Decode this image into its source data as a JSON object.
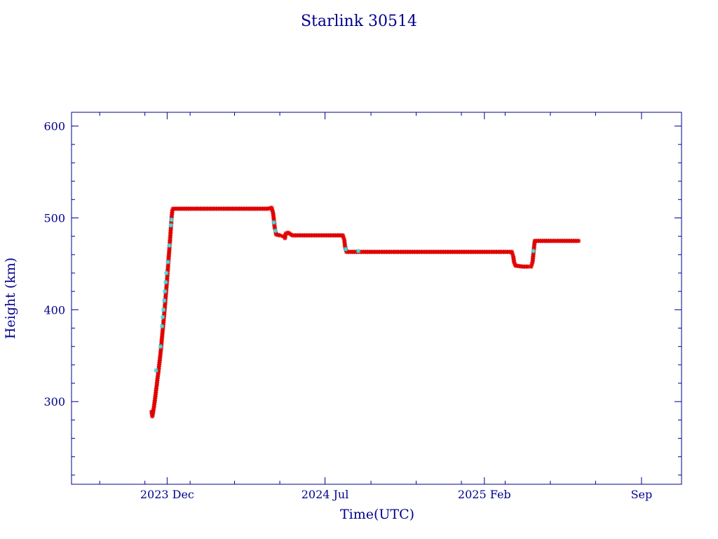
{
  "chart_data": {
    "type": "scatter",
    "title": "Starlink 30514",
    "xlabel": "Time(UTC)",
    "ylabel": "Height (km)",
    "ylim": [
      210,
      615
    ],
    "xlim": [
      "2023-07-25",
      "2025-10-25"
    ],
    "y_ticks": [
      300,
      400,
      500,
      600
    ],
    "x_ticks": [
      {
        "date": "2023-12-01",
        "label": "2023 Dec"
      },
      {
        "date": "2024-07-01",
        "label": "2024 Jul"
      },
      {
        "date": "2025-02-01",
        "label": "2025 Feb"
      },
      {
        "date": "2025-09-01",
        "label": "Sep"
      }
    ],
    "grid": false,
    "colors": {
      "axis": "#00008b",
      "primary": "#e00000",
      "secondary": "#40e0e0"
    },
    "series": [
      {
        "color": "#e00000",
        "marker": "asterisk",
        "points": [
          [
            "2023-11-10",
            289
          ],
          [
            "2023-11-11",
            284
          ],
          [
            "2023-11-12",
            288
          ],
          [
            "2023-11-13",
            293
          ],
          [
            "2023-11-14",
            299
          ],
          [
            "2023-11-15",
            305
          ],
          [
            "2023-11-16",
            312
          ],
          [
            "2023-11-17",
            318
          ],
          [
            "2023-11-18",
            325
          ],
          [
            "2023-11-19",
            331
          ],
          [
            "2023-11-20",
            338
          ],
          [
            "2023-11-21",
            345
          ],
          [
            "2023-11-22",
            352
          ],
          [
            "2023-11-23",
            360
          ],
          [
            "2023-11-24",
            369
          ],
          [
            "2023-11-25",
            378
          ],
          [
            "2023-11-26",
            386
          ],
          [
            "2023-11-27",
            395
          ],
          [
            "2023-11-28",
            404
          ],
          [
            "2023-11-29",
            414
          ],
          [
            "2023-11-30",
            424
          ],
          [
            "2023-12-01",
            434
          ],
          [
            "2023-12-02",
            445
          ],
          [
            "2023-12-03",
            456
          ],
          [
            "2023-12-04",
            466
          ],
          [
            "2023-12-05",
            477
          ],
          [
            "2023-12-06",
            488
          ],
          [
            "2023-12-07",
            500
          ],
          [
            "2023-12-08",
            508
          ],
          [
            "2023-12-09",
            510
          ],
          [
            "2023-12-15",
            510
          ],
          [
            "2024-01-01",
            510
          ],
          [
            "2024-01-15",
            510
          ],
          [
            "2024-02-01",
            510
          ],
          [
            "2024-02-15",
            510
          ],
          [
            "2024-03-01",
            510
          ],
          [
            "2024-03-15",
            510
          ],
          [
            "2024-04-01",
            510
          ],
          [
            "2024-04-15",
            510
          ],
          [
            "2024-04-20",
            511
          ],
          [
            "2024-04-22",
            505
          ],
          [
            "2024-04-23",
            498
          ],
          [
            "2024-04-24",
            490
          ],
          [
            "2024-04-26",
            482
          ],
          [
            "2024-05-01",
            481
          ],
          [
            "2024-05-05",
            480
          ],
          [
            "2024-05-08",
            478
          ],
          [
            "2024-05-09",
            483
          ],
          [
            "2024-05-12",
            484
          ],
          [
            "2024-05-18",
            481
          ],
          [
            "2024-06-01",
            481
          ],
          [
            "2024-06-15",
            481
          ],
          [
            "2024-07-01",
            481
          ],
          [
            "2024-07-15",
            481
          ],
          [
            "2024-07-25",
            481
          ],
          [
            "2024-07-27",
            476
          ],
          [
            "2024-07-28",
            469
          ],
          [
            "2024-07-30",
            463
          ],
          [
            "2024-08-05",
            463
          ],
          [
            "2024-08-15",
            463
          ],
          [
            "2024-09-01",
            463
          ],
          [
            "2024-10-01",
            463
          ],
          [
            "2024-11-01",
            463
          ],
          [
            "2024-12-01",
            463
          ],
          [
            "2025-01-01",
            463
          ],
          [
            "2025-02-01",
            463
          ],
          [
            "2025-03-01",
            463
          ],
          [
            "2025-03-10",
            463
          ],
          [
            "2025-03-12",
            458
          ],
          [
            "2025-03-13",
            452
          ],
          [
            "2025-03-15",
            448
          ],
          [
            "2025-03-25",
            447
          ],
          [
            "2025-04-01",
            447
          ],
          [
            "2025-04-05",
            447
          ],
          [
            "2025-04-07",
            452
          ],
          [
            "2025-04-08",
            460
          ],
          [
            "2025-04-09",
            468
          ],
          [
            "2025-04-10",
            475
          ],
          [
            "2025-04-20",
            475
          ],
          [
            "2025-05-01",
            475
          ],
          [
            "2025-05-15",
            475
          ],
          [
            "2025-06-01",
            475
          ],
          [
            "2025-06-08",
            475
          ]
        ]
      },
      {
        "color": "#40e0e0",
        "marker": "asterisk",
        "points": [
          [
            "2023-11-16",
            334
          ],
          [
            "2023-11-22",
            360
          ],
          [
            "2023-11-24",
            382
          ],
          [
            "2023-11-25",
            392
          ],
          [
            "2023-11-26",
            400
          ],
          [
            "2023-11-27",
            410
          ],
          [
            "2023-11-28",
            420
          ],
          [
            "2023-11-29",
            430
          ],
          [
            "2023-11-30",
            440
          ],
          [
            "2023-12-02",
            452
          ],
          [
            "2023-12-04",
            470
          ],
          [
            "2023-12-06",
            492
          ],
          [
            "2023-12-07",
            498
          ],
          [
            "2024-04-23",
            495
          ],
          [
            "2024-04-25",
            486
          ],
          [
            "2024-07-29",
            466
          ],
          [
            "2024-08-15",
            464
          ],
          [
            "2025-04-08",
            464
          ]
        ]
      }
    ]
  }
}
